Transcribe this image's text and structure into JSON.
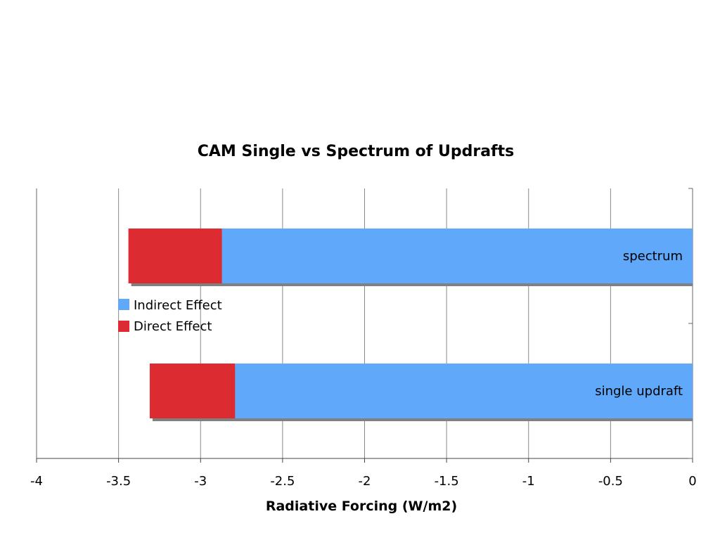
{
  "chart_data": {
    "type": "bar",
    "orientation": "horizontal",
    "stacked": true,
    "title": "CAM Single vs Spectrum of Updrafts",
    "xlabel": "Radiative Forcing (W/m2)",
    "ylabel": "",
    "xlim": [
      -4,
      0
    ],
    "xticks": [
      -4,
      -3.5,
      -3,
      -2.5,
      -2,
      -1.5,
      -1,
      -0.5,
      0
    ],
    "xtick_labels": [
      "-4",
      "-3.5",
      "-3",
      "-2.5",
      "-2",
      "-1.5",
      "-1",
      "-0.5",
      "0"
    ],
    "grid": "vertical",
    "categories": [
      "spectrum",
      "single updraft"
    ],
    "series": [
      {
        "name": "Indirect Effect",
        "color": "#5fa8fa",
        "values": [
          -2.87,
          -2.79
        ]
      },
      {
        "name": "Direct Effect",
        "color": "#dc2c32",
        "values": [
          -0.57,
          -0.52
        ]
      }
    ],
    "legend_position": "middle-left"
  }
}
